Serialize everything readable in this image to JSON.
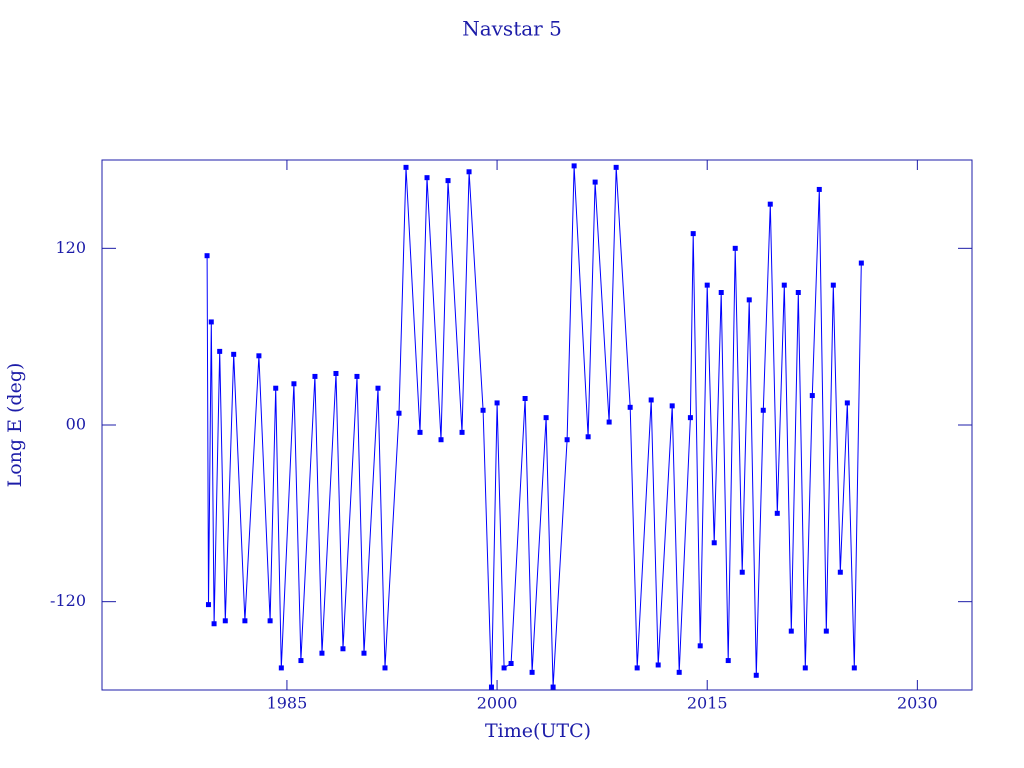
{
  "chart_data": {
    "type": "line",
    "title": "Navstar 5",
    "x_label": "Time(UTC)",
    "y_label": "Long E (deg)",
    "color": "#0000ff",
    "xlim": [
      1971.8,
      2033.9
    ],
    "ylim": [
      -180,
      180
    ],
    "xticks": [
      1985,
      2000,
      2015,
      2030
    ],
    "yticks": [
      -120,
      {
        "value": 0,
        "label": "00"
      },
      120
    ],
    "x": [
      1979.3,
      1979.4,
      1979.6,
      1979.8,
      1980.2,
      1980.6,
      1981.2,
      1982,
      1983,
      1983.8,
      1984.2,
      1984.6,
      1985.5,
      1986,
      1987,
      1987.5,
      1988.5,
      1989,
      1990,
      1990.5,
      1991.5,
      1992,
      1993,
      1993.5,
      1994.5,
      1995,
      1996,
      1996.5,
      1997.5,
      1998,
      1999,
      1999.6,
      2000,
      2000.5,
      2001,
      2002,
      2002.5,
      2003.5,
      2004,
      2005,
      2005.5,
      2006.5,
      2007,
      2008,
      2008.5,
      2009.5,
      2010,
      2011,
      2011.5,
      2012.5,
      2013,
      2013.8,
      2014,
      2014.5,
      2015,
      2015.5,
      2016,
      2016.5,
      2017,
      2017.5,
      2018,
      2018.5,
      2019,
      2019.5,
      2020,
      2020.5,
      2021,
      2021.5,
      2022,
      2022.5,
      2023,
      2023.5,
      2024,
      2024.5,
      2025,
      2025.5,
      2026
    ],
    "values": [
      115,
      -122,
      70,
      -135,
      50,
      -133,
      48,
      -133,
      47,
      -133,
      25,
      -165,
      28,
      -160,
      33,
      -155,
      35,
      -152,
      33,
      -155,
      25,
      -165,
      8,
      175,
      -5,
      168,
      -10,
      166,
      -5,
      172,
      10,
      -178,
      15,
      -165,
      -162,
      18,
      -168,
      5,
      -178,
      -10,
      176,
      -8,
      165,
      2,
      175,
      12,
      -165,
      17,
      -163,
      13,
      -168,
      5,
      130,
      -150,
      95,
      -80,
      90,
      -160,
      120,
      -100,
      85,
      -170,
      10,
      150,
      -60,
      95,
      -140,
      90,
      -165,
      20,
      160,
      -140,
      95,
      -100,
      15,
      -165,
      110
    ]
  }
}
